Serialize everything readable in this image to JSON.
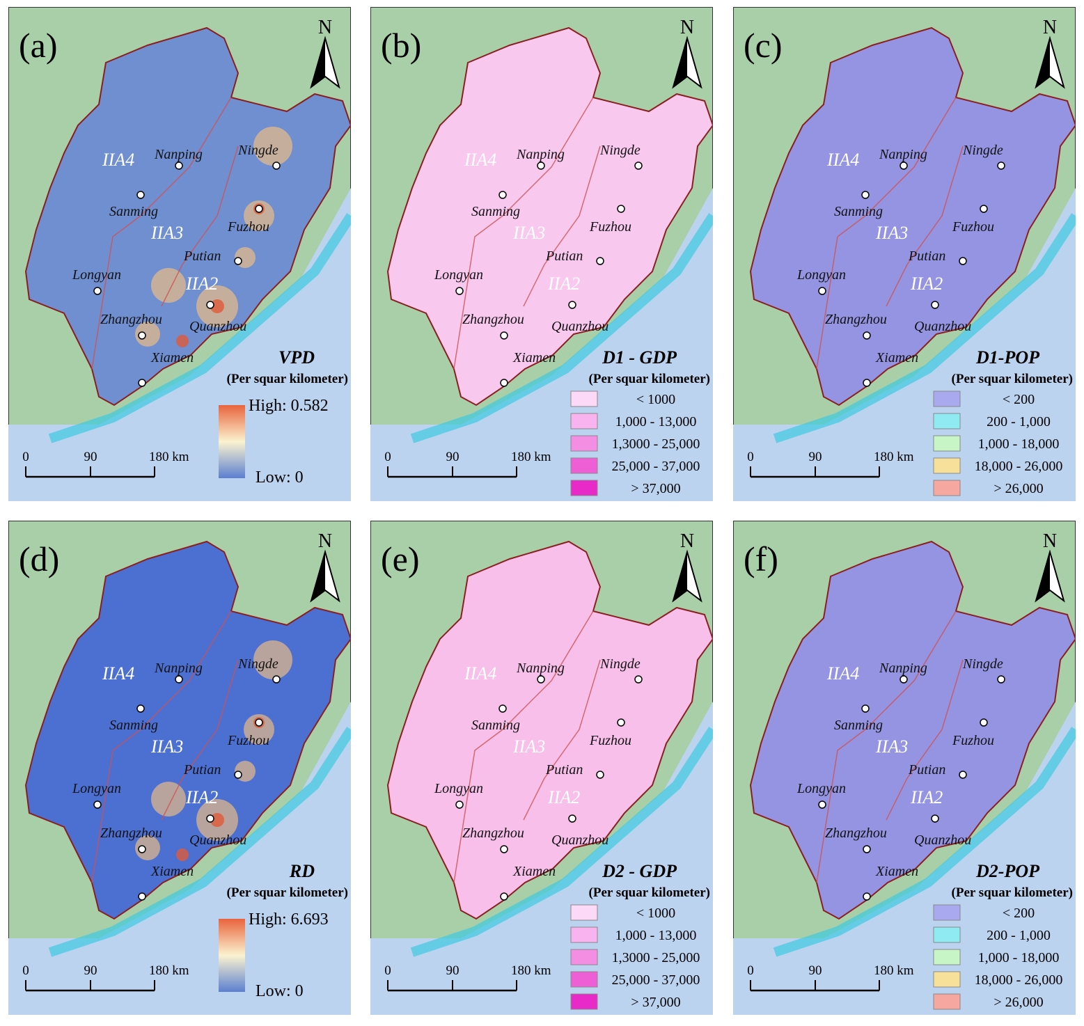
{
  "panels": [
    {
      "label": "(a)",
      "north": "N",
      "zones": [
        "IIA4",
        "IIA3",
        "IIA2"
      ],
      "cities": [
        "Nanping",
        "Ningde",
        "Sanming",
        "Fuzhou",
        "Putian",
        "Longyan",
        "Zhangzhou",
        "Quanzhou",
        "Xiamen"
      ],
      "scale": [
        "0",
        "90",
        "180 km"
      ],
      "legend": {
        "title": "VPD",
        "subtitle": "(Per squar kilometer)",
        "high": "High: 0.582",
        "low": "Low: 0"
      }
    },
    {
      "label": "(b)",
      "north": "N",
      "zones": [
        "IIA4",
        "IIA3",
        "IIA2"
      ],
      "cities": [
        "Nanping",
        "Ningde",
        "Sanming",
        "Fuzhou",
        "Putian",
        "Longyan",
        "Zhangzhou",
        "Quanzhou",
        "Xiamen"
      ],
      "scale": [
        "0",
        "90",
        "180 km"
      ],
      "legend": {
        "title": "D1 - GDP",
        "subtitle": "(Per squar kilometer)",
        "items": [
          {
            "label": "< 1000",
            "color": "#fcd9f6"
          },
          {
            "label": "1,000 - 13,000",
            "color": "#f9b3ee"
          },
          {
            "label": "1,3000 - 25,000",
            "color": "#f48ee3"
          },
          {
            "label": "25,000 - 37,000",
            "color": "#ee5fd6"
          },
          {
            "label": "> 37,000",
            "color": "#e82ac8"
          }
        ]
      }
    },
    {
      "label": "(c)",
      "north": "N",
      "zones": [
        "IIA4",
        "IIA3",
        "IIA2"
      ],
      "cities": [
        "Nanping",
        "Ningde",
        "Sanming",
        "Fuzhou",
        "Putian",
        "Longyan",
        "Zhangzhou",
        "Quanzhou",
        "Xiamen"
      ],
      "scale": [
        "0",
        "90",
        "180 km"
      ],
      "legend": {
        "title": "D1-POP",
        "subtitle": "(Per squar kilometer)",
        "items": [
          {
            "label": "< 200",
            "color": "#a9a9f0"
          },
          {
            "label": "200 - 1,000",
            "color": "#8feaf2"
          },
          {
            "label": "1,000 - 18,000",
            "color": "#c7f5c6"
          },
          {
            "label": "18,000 - 26,000",
            "color": "#f7e09a"
          },
          {
            "label": "> 26,000",
            "color": "#f6a7a0"
          }
        ]
      }
    },
    {
      "label": "(d)",
      "north": "N",
      "zones": [
        "IIA4",
        "IIA3",
        "IIA2"
      ],
      "cities": [
        "Nanping",
        "Ningde",
        "Sanming",
        "Fuzhou",
        "Putian",
        "Longyan",
        "Zhangzhou",
        "Quanzhou",
        "Xiamen"
      ],
      "scale": [
        "0",
        "90",
        "180 km"
      ],
      "legend": {
        "title": "RD",
        "subtitle": "(Per squar kilometer)",
        "high": "High: 6.693",
        "low": "Low: 0"
      }
    },
    {
      "label": "(e)",
      "north": "N",
      "zones": [
        "IIA4",
        "IIA3",
        "IIA2"
      ],
      "cities": [
        "Nanping",
        "Ningde",
        "Sanming",
        "Fuzhou",
        "Putian",
        "Longyan",
        "Zhangzhou",
        "Quanzhou",
        "Xiamen"
      ],
      "scale": [
        "0",
        "90",
        "180 km"
      ],
      "legend": {
        "title": "D2 - GDP",
        "subtitle": "(Per squar kilometer)",
        "items": [
          {
            "label": "< 1000",
            "color": "#fcd9f6"
          },
          {
            "label": "1,000 - 13,000",
            "color": "#f9b3ee"
          },
          {
            "label": "1,3000 - 25,000",
            "color": "#f48ee3"
          },
          {
            "label": "25,000 - 37,000",
            "color": "#ee5fd6"
          },
          {
            "label": "> 37,000",
            "color": "#e82ac8"
          }
        ]
      }
    },
    {
      "label": "(f)",
      "north": "N",
      "zones": [
        "IIA4",
        "IIA3",
        "IIA2"
      ],
      "cities": [
        "Nanping",
        "Ningde",
        "Sanming",
        "Fuzhou",
        "Putian",
        "Longyan",
        "Zhangzhou",
        "Quanzhou",
        "Xiamen"
      ],
      "scale": [
        "0",
        "90",
        "180 km"
      ],
      "legend": {
        "title": "D2-POP",
        "subtitle": "(Per squar kilometer)",
        "items": [
          {
            "label": "< 200",
            "color": "#a9a9f0"
          },
          {
            "label": "200 - 1,000",
            "color": "#8feaf2"
          },
          {
            "label": "1,000 - 18,000",
            "color": "#c7f5c6"
          },
          {
            "label": "18,000 - 26,000",
            "color": "#f7e09a"
          },
          {
            "label": "> 26,000",
            "color": "#f6a7a0"
          }
        ]
      }
    }
  ]
}
